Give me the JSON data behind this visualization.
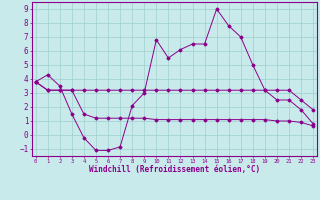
{
  "background_color": "#c8eaea",
  "grid_color": "#9ecece",
  "line_color": "#8b008b",
  "xlim": [
    -0.3,
    23.3
  ],
  "ylim": [
    -1.5,
    9.5
  ],
  "yticks": [
    -1,
    0,
    1,
    2,
    3,
    4,
    5,
    6,
    7,
    8,
    9
  ],
  "xticks": [
    0,
    1,
    2,
    3,
    4,
    5,
    6,
    7,
    8,
    9,
    10,
    11,
    12,
    13,
    14,
    15,
    16,
    17,
    18,
    19,
    20,
    21,
    22,
    23
  ],
  "xlabel": "Windchill (Refroidissement éolien,°C)",
  "series1": [
    [
      0,
      3.8
    ],
    [
      1,
      4.3
    ],
    [
      2,
      3.5
    ],
    [
      3,
      1.5
    ],
    [
      4,
      -0.2
    ],
    [
      5,
      -1.1
    ],
    [
      6,
      -1.1
    ],
    [
      7,
      -0.85
    ],
    [
      8,
      2.1
    ],
    [
      9,
      3.0
    ],
    [
      10,
      6.8
    ],
    [
      11,
      5.5
    ],
    [
      12,
      6.1
    ],
    [
      13,
      6.5
    ],
    [
      14,
      6.5
    ],
    [
      15,
      9.0
    ],
    [
      16,
      7.8
    ],
    [
      17,
      7.0
    ],
    [
      18,
      5.0
    ],
    [
      19,
      3.2
    ],
    [
      20,
      2.5
    ],
    [
      21,
      2.5
    ],
    [
      22,
      1.8
    ],
    [
      23,
      0.8
    ]
  ],
  "series2": [
    [
      0,
      3.8
    ],
    [
      1,
      3.2
    ],
    [
      2,
      3.2
    ],
    [
      3,
      3.2
    ],
    [
      4,
      3.2
    ],
    [
      5,
      3.2
    ],
    [
      6,
      3.2
    ],
    [
      7,
      3.2
    ],
    [
      8,
      3.2
    ],
    [
      9,
      3.2
    ],
    [
      10,
      3.2
    ],
    [
      11,
      3.2
    ],
    [
      12,
      3.2
    ],
    [
      13,
      3.2
    ],
    [
      14,
      3.2
    ],
    [
      15,
      3.2
    ],
    [
      16,
      3.2
    ],
    [
      17,
      3.2
    ],
    [
      18,
      3.2
    ],
    [
      19,
      3.2
    ],
    [
      20,
      3.2
    ],
    [
      21,
      3.2
    ],
    [
      22,
      2.5
    ],
    [
      23,
      1.8
    ]
  ],
  "series3": [
    [
      0,
      3.8
    ],
    [
      1,
      3.2
    ],
    [
      2,
      3.2
    ],
    [
      3,
      3.2
    ],
    [
      4,
      1.5
    ],
    [
      5,
      1.2
    ],
    [
      6,
      1.2
    ],
    [
      7,
      1.2
    ],
    [
      8,
      1.2
    ],
    [
      9,
      1.2
    ],
    [
      10,
      1.1
    ],
    [
      11,
      1.1
    ],
    [
      12,
      1.1
    ],
    [
      13,
      1.1
    ],
    [
      14,
      1.1
    ],
    [
      15,
      1.1
    ],
    [
      16,
      1.1
    ],
    [
      17,
      1.1
    ],
    [
      18,
      1.1
    ],
    [
      19,
      1.1
    ],
    [
      20,
      1.0
    ],
    [
      21,
      1.0
    ],
    [
      22,
      0.9
    ],
    [
      23,
      0.65
    ]
  ]
}
